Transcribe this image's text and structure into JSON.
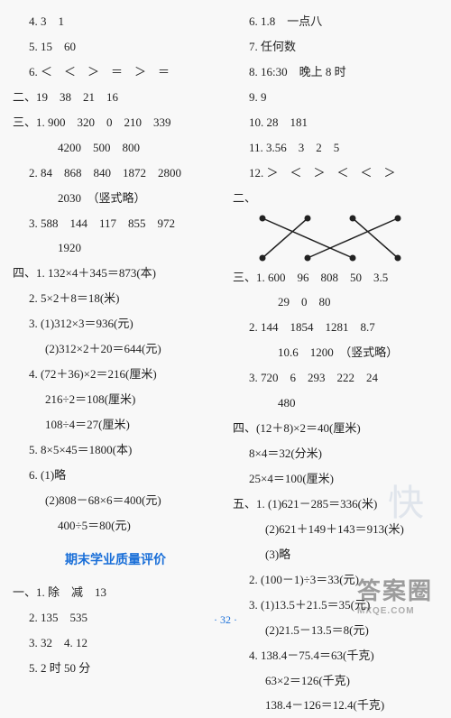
{
  "left": {
    "l1": "4. 3　1",
    "l2": "5. 15　60",
    "l3": "6. ＜　＜　＞　＝　＞　＝",
    "l4": "二、19　38　21　16",
    "l5": "三、1. 900　320　0　210　339",
    "l6": "4200　500　800",
    "l7": "2. 84　868　840　1872　2800",
    "l8": "2030　（竖式略）",
    "l9": "3. 588　144　117　855　972",
    "l10": "1920",
    "l11": "四、1. 132×4＋345＝873(本)",
    "l12": "2. 5×2＋8＝18(米)",
    "l13": "3. (1)312×3＝936(元)",
    "l14": "(2)312×2＋20＝644(元)",
    "l15": "4. (72＋36)×2＝216(厘米)",
    "l16": "216÷2＝108(厘米)",
    "l17": "108÷4＝27(厘米)",
    "l18": "5. 8×5×45＝1800(本)",
    "l19": "6. (1)略",
    "l20": "(2)808－68×6＝400(元)",
    "l21": "400÷5＝80(元)",
    "title": "期末学业质量评价",
    "b1": "一、1. 除　减　13",
    "b2": "2. 135　535",
    "b3": "3. 32　4. 12",
    "b4": "5. 2 时 50 分"
  },
  "right": {
    "r1": "6. 1.8　一点八",
    "r2": "7. 任何数",
    "r3": "8. 16:30　晚上 8 时",
    "r4": "9. 9",
    "r5": "10. 28　181",
    "r6": "11. 3.56　3　2　5",
    "r7": "12. ＞　＜　＞　＜　＜　＞",
    "r8": "二、",
    "r9": "三、1. 600　96　808　50　3.5",
    "r10": "29　0　80",
    "r11": "2. 144　1854　1281　8.7",
    "r12": "10.6　1200　（竖式略）",
    "r13": "3. 720　6　293　222　24",
    "r14": "480",
    "r15": "四、(12＋8)×2＝40(厘米)",
    "r16": "8×4＝32(分米)",
    "r17": "25×4＝100(厘米)",
    "r18": "五、1. (1)621－285＝336(米)",
    "r19": "(2)621＋149＋143＝913(米)",
    "r20": "(3)略",
    "r21": "2. (100－1)÷3＝33(元)",
    "r22": "3. (1)13.5＋21.5＝35(元)",
    "r23": "(2)21.5－13.5＝8(元)",
    "r24": "4. 138.4－75.4＝63(千克)",
    "r25": "63×2＝126(千克)",
    "r26": "138.4－126＝12.4(千克)"
  },
  "matching": {
    "top_x": [
      15,
      65,
      115,
      165
    ],
    "bot_x": [
      15,
      65,
      115,
      165
    ],
    "edges": [
      [
        0,
        2
      ],
      [
        1,
        0
      ],
      [
        2,
        3
      ],
      [
        3,
        1
      ]
    ],
    "dot_color": "#222",
    "line_color": "#222"
  },
  "footer": "· 32 ·",
  "watermark1": "快",
  "watermark2": "答案圈",
  "watermark2b": "MXQE.COM"
}
